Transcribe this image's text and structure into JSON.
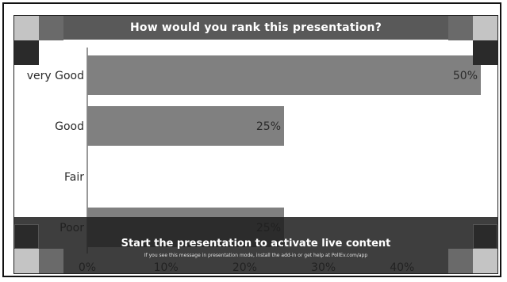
{
  "header": {
    "title": "How would you rank this presentation?"
  },
  "overlay": {
    "title": "Start the presentation to activate live content",
    "subtitle": "If you see this message in presentation mode, install the add-in or get help at PollEv.com/app"
  },
  "colors": {
    "bar": "#808080",
    "title_bar": "#595959",
    "overlay": "#1e1e1e",
    "corner_light": "#c4c4c4",
    "corner_mid": "#6a6a6a",
    "corner_dark": "#2a2a2a"
  },
  "chart_data": {
    "type": "bar",
    "orientation": "horizontal",
    "categories": [
      "very Good",
      "Good",
      "Fair",
      "Poor"
    ],
    "values": [
      50,
      25,
      0,
      25
    ],
    "value_labels": [
      "50%",
      "25%",
      "",
      "25%"
    ],
    "xlim": [
      0,
      50
    ],
    "x_ticks": [
      0,
      10,
      20,
      30,
      40
    ],
    "x_tick_labels": [
      "0%",
      "10%",
      "20%",
      "30%",
      "40%"
    ],
    "grid": false
  }
}
